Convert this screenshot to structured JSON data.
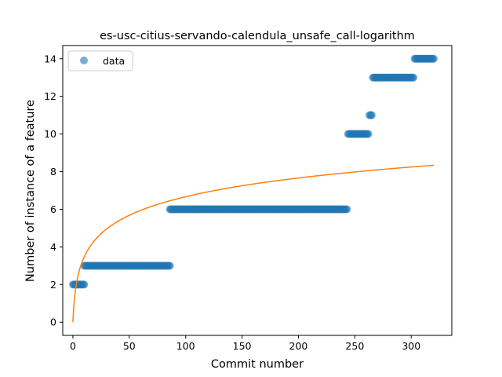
{
  "chart_data": {
    "type": "scatter",
    "title": "es-usc-citius-servando-calendula_unsafe_call-logarithm",
    "xlabel": "Commit number",
    "ylabel": "Number of instance of a feature",
    "xlim": [
      -9,
      336
    ],
    "ylim": [
      -0.7,
      14.7
    ],
    "xticks": [
      0,
      50,
      100,
      150,
      200,
      250,
      300
    ],
    "yticks": [
      0,
      2,
      4,
      6,
      8,
      10,
      12,
      14
    ],
    "grid": false,
    "legend": {
      "position": "top-left",
      "entries": [
        "data"
      ]
    },
    "series": [
      {
        "name": "data",
        "kind": "points",
        "color": "#1f77b4",
        "segments": [
          {
            "x_start": 0,
            "x_end": 10,
            "y": 2
          },
          {
            "x_start": 10,
            "x_end": 86,
            "y": 3
          },
          {
            "x_start": 86,
            "x_end": 243,
            "y": 6
          },
          {
            "x_start": 244,
            "x_end": 262,
            "y": 10
          },
          {
            "x_start": 263,
            "x_end": 265,
            "y": 11
          },
          {
            "x_start": 266,
            "x_end": 302,
            "y": 13
          },
          {
            "x_start": 303,
            "x_end": 320,
            "y": 14
          }
        ]
      },
      {
        "kind": "fit-line",
        "color": "#ff7f0e",
        "function": "a*ln(x+1)",
        "a": 1.445,
        "x_range": [
          0,
          320
        ]
      }
    ]
  }
}
